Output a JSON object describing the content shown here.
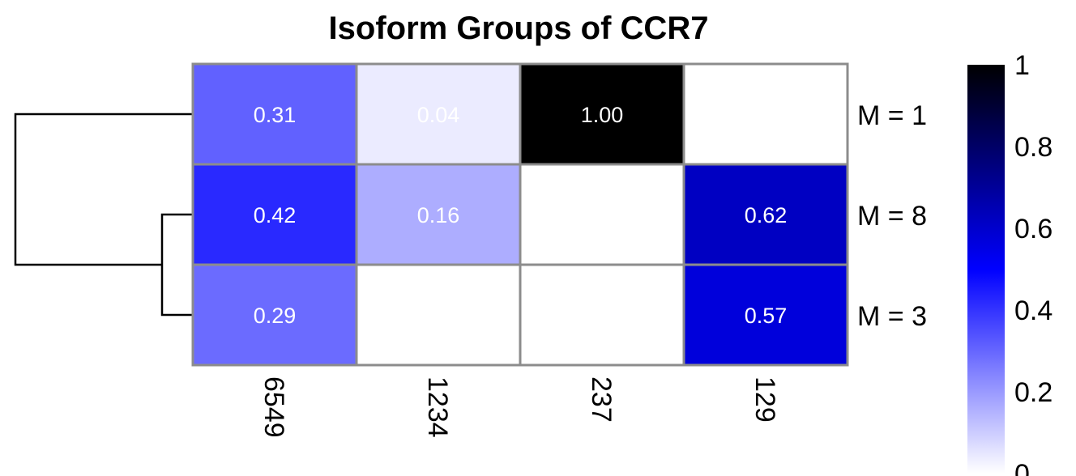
{
  "chart_data": {
    "type": "heatmap",
    "title": "Isoform Groups of CCR7",
    "rows": [
      "M = 1",
      "M = 8",
      "M = 3"
    ],
    "columns": [
      "6549",
      "1234",
      "237",
      "129"
    ],
    "values": [
      [
        0.31,
        0.04,
        1.0,
        null
      ],
      [
        0.42,
        0.16,
        null,
        0.62
      ],
      [
        0.29,
        null,
        null,
        0.57
      ]
    ],
    "cell_labels": [
      [
        "0.31",
        "0.04",
        "1.00",
        ""
      ],
      [
        "0.42",
        "0.16",
        "",
        "0.62"
      ],
      [
        "0.29",
        "",
        "",
        "0.57"
      ]
    ],
    "color_scale": {
      "min": 0,
      "max": 1,
      "stops": [
        "#ffffff",
        "#0000ff",
        "#000000"
      ],
      "ticks": [
        "0",
        "0.2",
        "0.4",
        "0.6",
        "0.8",
        "1"
      ]
    },
    "row_dendrogram": {
      "merges": [
        [
          "M = 8",
          "M = 3"
        ],
        [
          "M = 1",
          "(M = 8, M = 3)"
        ]
      ]
    },
    "cell_border_color": "#8c8c8c",
    "legend_position": "right"
  }
}
